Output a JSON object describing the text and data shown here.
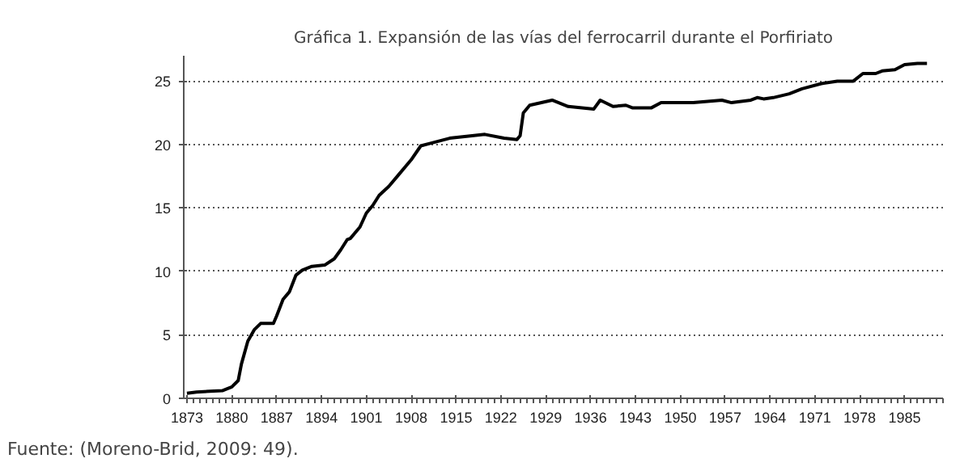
{
  "chart_data": {
    "type": "line",
    "title": "Gráfica 1. Expansión de las vías del ferrocarril durante el Porfiriato",
    "annotations": [
      "Fuente: (Moreno-Brid, 2009: 49)."
    ],
    "x": [
      1873,
      1874.5,
      1878.5,
      1880,
      1881,
      1881.5,
      1882.5,
      1883.5,
      1884.5,
      1886.5,
      1887,
      1888,
      1889,
      1890,
      1891,
      1892.5,
      1894.5,
      1896,
      1897,
      1898,
      1898.5,
      1900,
      1901,
      1902,
      1903,
      1904.5,
      1906,
      1908,
      1909.5,
      1911,
      1914,
      1917.5,
      1919.5,
      1922.5,
      1924.5,
      1925,
      1925.5,
      1926.5,
      1930,
      1932.5,
      1936.5,
      1937.5,
      1939.5,
      1941.5,
      1942.5,
      1945.5,
      1947,
      1952,
      1956.5,
      1958,
      1961,
      1962,
      1963,
      1964.5,
      1967,
      1969,
      1972,
      1974.5,
      1977,
      1978.5,
      1980.5,
      1981.5,
      1983.5,
      1985,
      1987,
      1988.5
    ],
    "series": [
      {
        "color": "#000000",
        "values": [
          0.4,
          0.5,
          0.6,
          0.9,
          1.4,
          2.7,
          4.5,
          5.4,
          5.9,
          5.9,
          6.5,
          7.8,
          8.4,
          9.7,
          10.1,
          10.4,
          10.5,
          11.0,
          11.7,
          12.5,
          12.6,
          13.5,
          14.6,
          15.2,
          16.0,
          16.7,
          17.6,
          18.8,
          19.9,
          20.1,
          20.5,
          20.7,
          20.8,
          20.5,
          20.4,
          20.7,
          22.5,
          23.1,
          23.5,
          23.0,
          22.8,
          23.5,
          23.0,
          23.1,
          22.9,
          22.9,
          23.3,
          23.3,
          23.5,
          23.3,
          23.5,
          23.7,
          23.6,
          23.7,
          24.0,
          24.4,
          24.8,
          25.0,
          25.0,
          25.6,
          25.6,
          25.8,
          25.9,
          26.3,
          26.4,
          26.4
        ]
      }
    ],
    "xlim": [
      1872.5,
      1991
    ],
    "ylim": [
      0,
      27
    ],
    "xticks": [
      1873,
      1880,
      1887,
      1894,
      1901,
      1908,
      1915,
      1922,
      1929,
      1936,
      1943,
      1950,
      1957,
      1964,
      1971,
      1978,
      1985
    ],
    "yticks": [
      0,
      5,
      10,
      15,
      20,
      25
    ],
    "grid": "y",
    "marker": "none",
    "line_style": "solid"
  }
}
